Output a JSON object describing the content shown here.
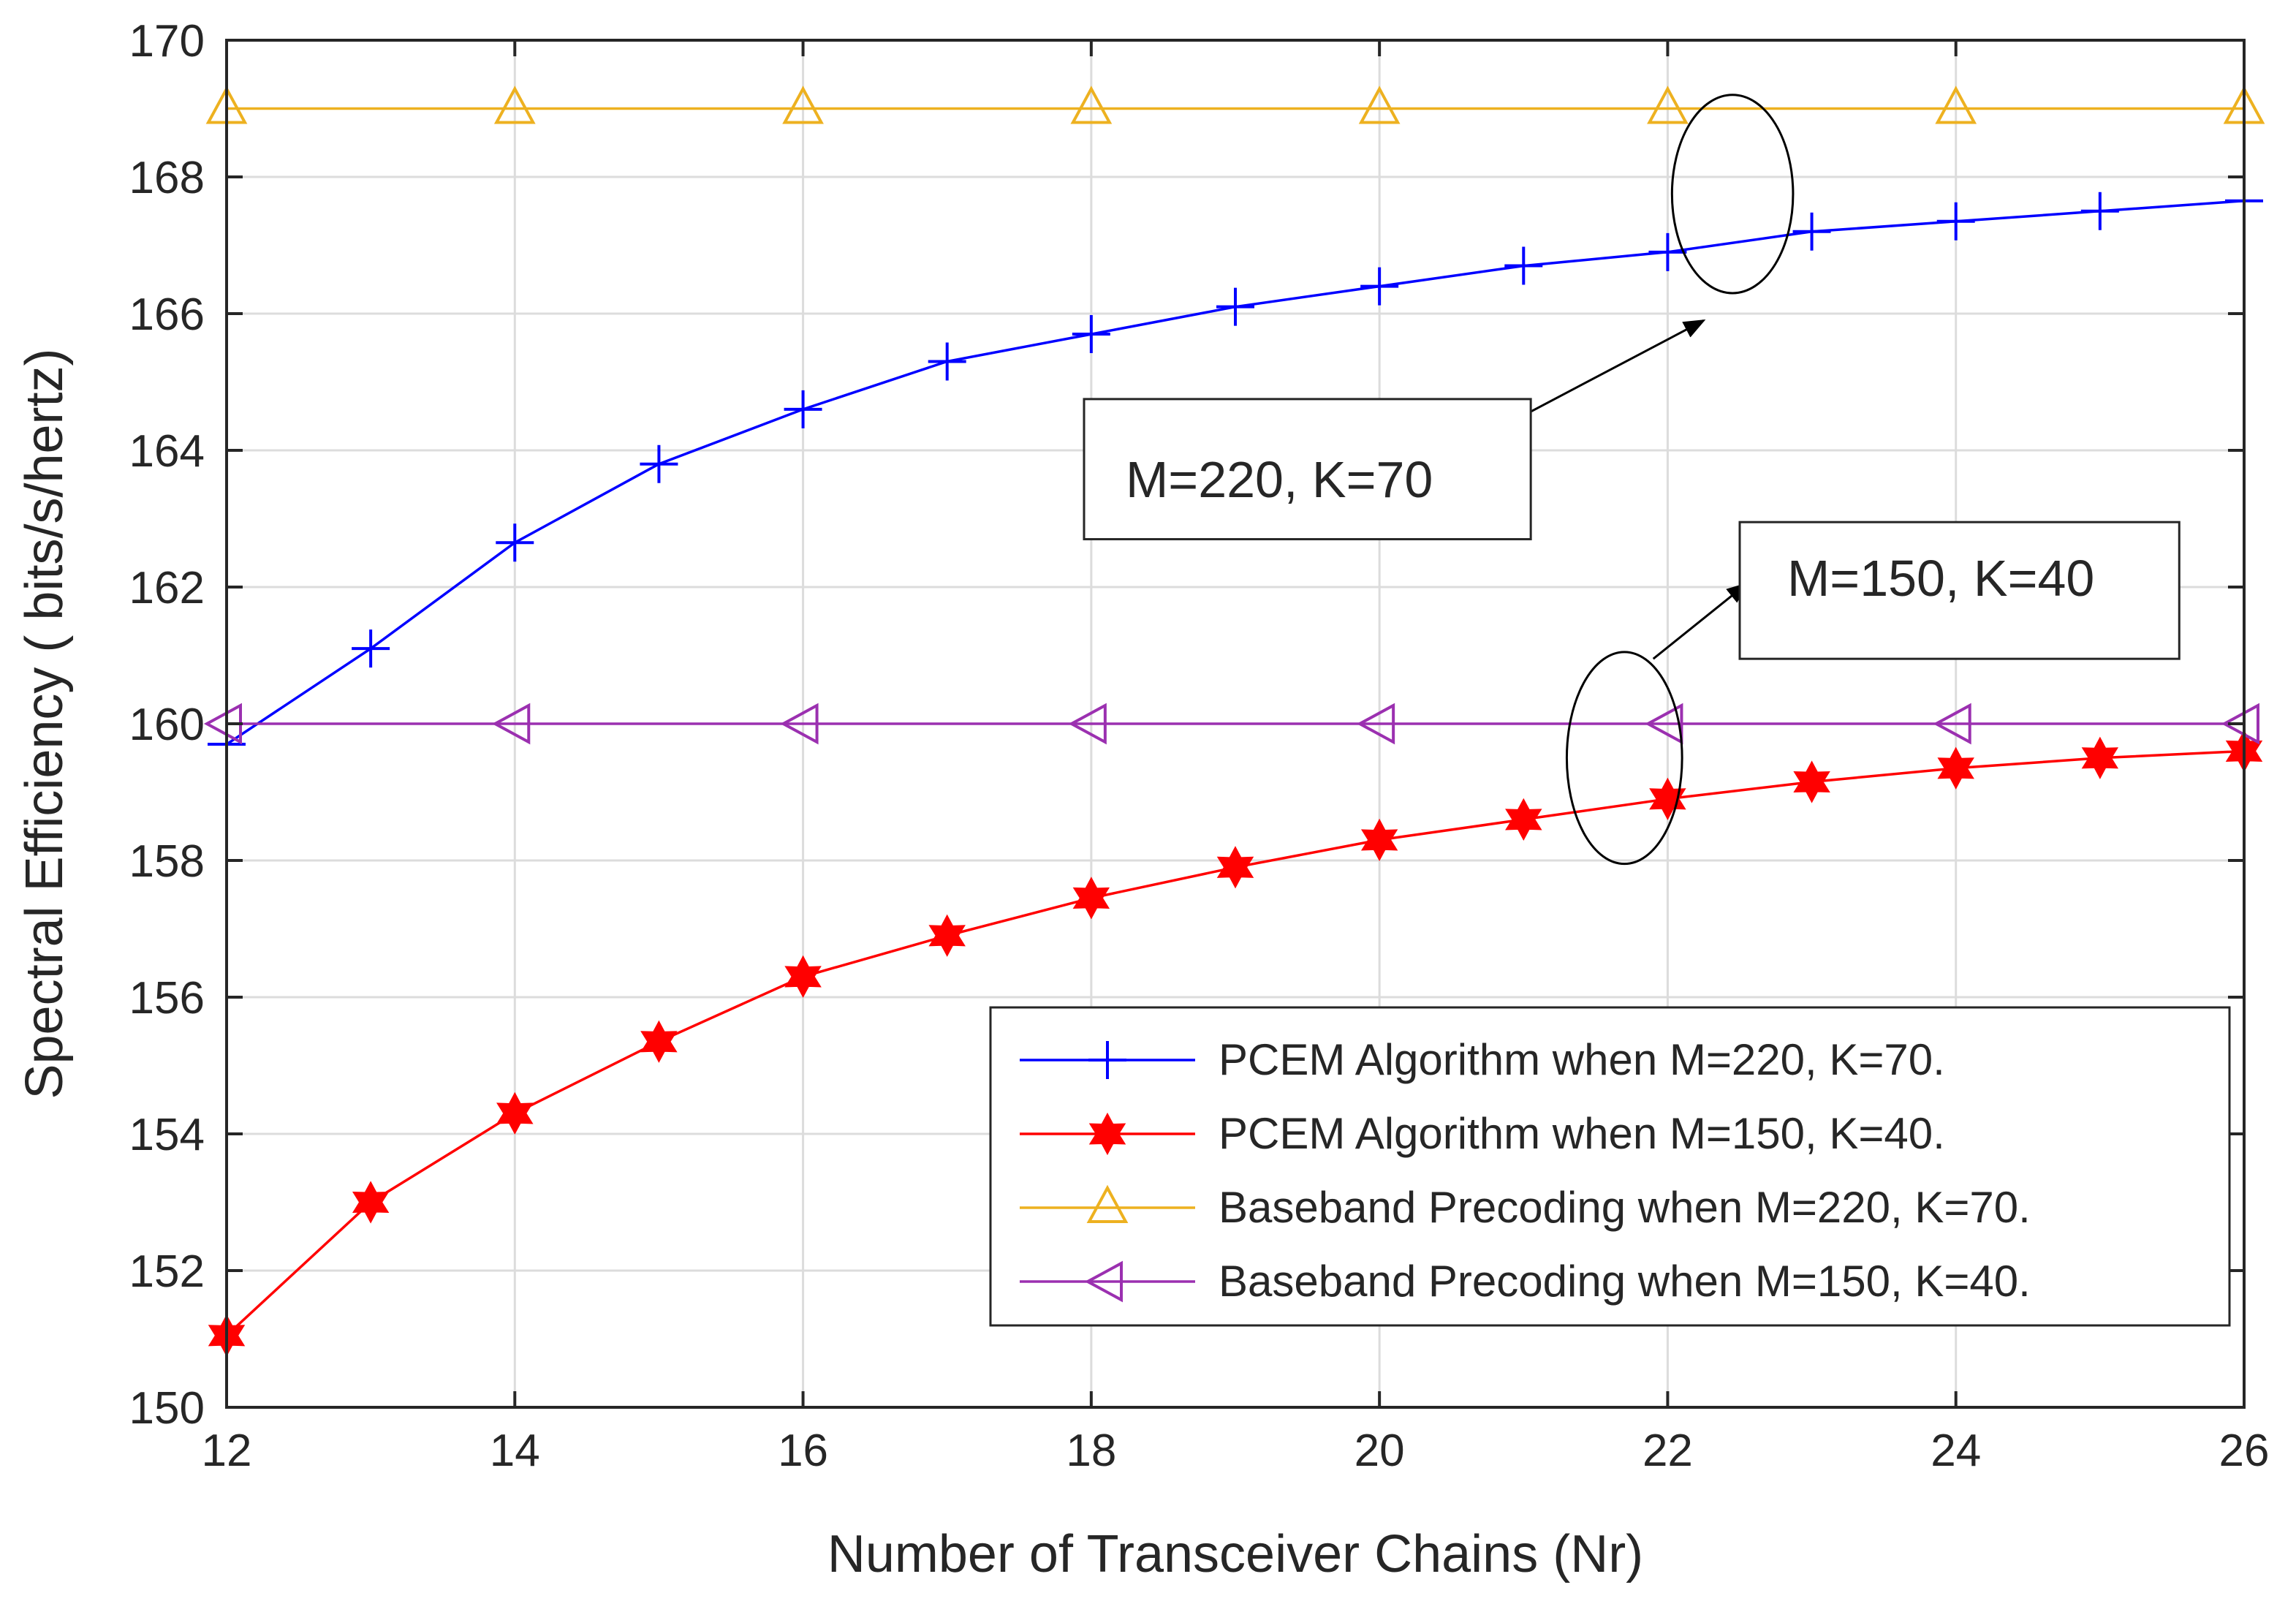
{
  "chart_data": {
    "type": "line",
    "title": "",
    "xlabel": "Number of Transceiver Chains (Nr)",
    "ylabel": "Spectral Efficiency ( bits/s/hertz)",
    "xlim": [
      12,
      26
    ],
    "ylim": [
      150,
      170
    ],
    "grid": true,
    "xticks": [
      12,
      14,
      16,
      18,
      20,
      22,
      24,
      26
    ],
    "yticks": [
      150,
      152,
      154,
      156,
      158,
      160,
      162,
      164,
      166,
      168,
      170
    ],
    "legend_position": "bottom-right",
    "series": [
      {
        "name": "PCEM Algorithm when M=220, K=70.",
        "color": "#0000ff",
        "marker": "plus",
        "x": [
          12,
          13,
          14,
          15,
          16,
          17,
          18,
          19,
          20,
          21,
          22,
          23,
          24,
          25,
          26
        ],
        "y": [
          159.7,
          161.1,
          162.65,
          163.8,
          164.6,
          165.3,
          165.7,
          166.1,
          166.4,
          166.7,
          166.9,
          167.2,
          167.35,
          167.5,
          167.65
        ]
      },
      {
        "name": "PCEM Algorithm when M=150, K=40.",
        "color": "#ff0000",
        "marker": "hexagram",
        "x": [
          12,
          13,
          14,
          15,
          16,
          17,
          18,
          19,
          20,
          21,
          22,
          23,
          24,
          25,
          26
        ],
        "y": [
          151.05,
          153.0,
          154.3,
          155.35,
          156.3,
          156.9,
          157.45,
          157.9,
          158.3,
          158.6,
          158.9,
          159.15,
          159.35,
          159.5,
          159.6
        ]
      },
      {
        "name": "Baseband Precoding when M=220, K=70.",
        "color": "#edb120",
        "marker": "triangle-up",
        "x": [
          12,
          14,
          16,
          18,
          20,
          22,
          24,
          26
        ],
        "y": [
          169,
          169,
          169,
          169,
          169,
          169,
          169,
          169
        ]
      },
      {
        "name": "Baseband Precoding when M=150, K=40.",
        "color": "#9b30b0",
        "marker": "triangle-left",
        "x": [
          12,
          14,
          16,
          18,
          20,
          22,
          24,
          26
        ],
        "y": [
          160,
          160,
          160,
          160,
          160,
          160,
          160,
          160
        ]
      }
    ],
    "annotations": [
      {
        "text": "M=220, K=70",
        "ellipse_center": [
          22.45,
          167.75
        ],
        "ellipse_semi_axes": [
          0.42,
          1.45
        ],
        "arrow_from": [
          20.0,
          163.4
        ],
        "arrow_to": [
          22.25,
          165.9
        ],
        "box_range_x": [
          17.95,
          21.05
        ],
        "box_range_y": [
          162.7,
          164.75
        ]
      },
      {
        "text": "M=150, K=40",
        "ellipse_center": [
          21.7,
          159.5
        ],
        "ellipse_semi_axes": [
          0.4,
          1.55
        ],
        "arrow_from": [
          21.9,
          160.95
        ],
        "arrow_to": [
          22.55,
          162.05
        ],
        "box_range_x": [
          22.5,
          25.55
        ],
        "box_range_y": [
          160.95,
          162.95
        ]
      }
    ]
  }
}
